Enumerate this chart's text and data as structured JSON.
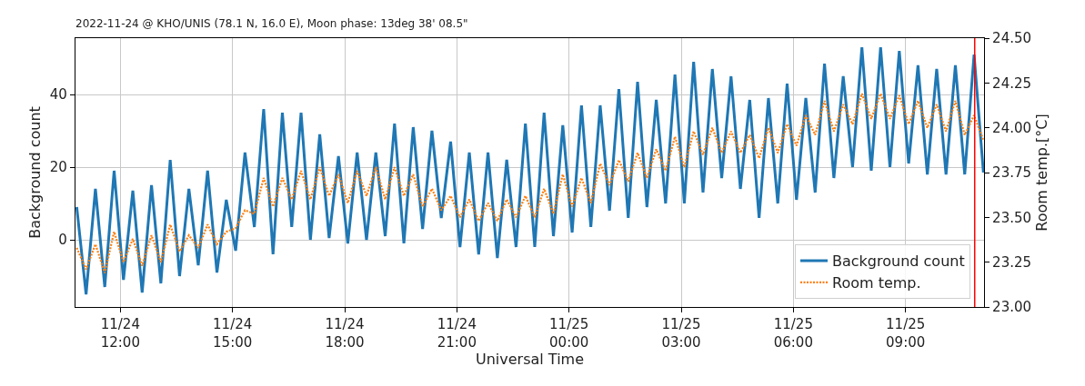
{
  "chart_data": {
    "type": "line",
    "title": "2022-11-24 @ KHO/UNIS (78.1 N, 16.0 E), Moon phase: 13deg 38' 08.5\"",
    "xlabel": "Universal Time",
    "ylabel": "Background count",
    "y2label": "Room temp.[°C]",
    "x": [
      "2022-11-24T10:50",
      "2022-11-24T11:05",
      "2022-11-24T11:20",
      "2022-11-24T11:35",
      "2022-11-24T11:50",
      "2022-11-24T12:05",
      "2022-11-24T12:20",
      "2022-11-24T12:35",
      "2022-11-24T12:50",
      "2022-11-24T13:05",
      "2022-11-24T13:20",
      "2022-11-24T13:35",
      "2022-11-24T13:50",
      "2022-11-24T14:05",
      "2022-11-24T14:20",
      "2022-11-24T14:35",
      "2022-11-24T14:50",
      "2022-11-24T15:05",
      "2022-11-24T15:20",
      "2022-11-24T15:35",
      "2022-11-24T15:50",
      "2022-11-24T16:05",
      "2022-11-24T16:20",
      "2022-11-24T16:35",
      "2022-11-24T16:50",
      "2022-11-24T17:05",
      "2022-11-24T17:20",
      "2022-11-24T17:35",
      "2022-11-24T17:50",
      "2022-11-24T18:05",
      "2022-11-24T18:20",
      "2022-11-24T18:35",
      "2022-11-24T18:50",
      "2022-11-24T19:05",
      "2022-11-24T19:20",
      "2022-11-24T19:35",
      "2022-11-24T19:50",
      "2022-11-24T20:05",
      "2022-11-24T20:20",
      "2022-11-24T20:35",
      "2022-11-24T20:50",
      "2022-11-24T21:05",
      "2022-11-24T21:20",
      "2022-11-24T21:35",
      "2022-11-24T21:50",
      "2022-11-24T22:05",
      "2022-11-24T22:20",
      "2022-11-24T22:35",
      "2022-11-24T22:50",
      "2022-11-24T23:05",
      "2022-11-24T23:20",
      "2022-11-24T23:35",
      "2022-11-24T23:50",
      "2022-11-25T00:05",
      "2022-11-25T00:20",
      "2022-11-25T00:35",
      "2022-11-25T00:50",
      "2022-11-25T01:05",
      "2022-11-25T01:20",
      "2022-11-25T01:35",
      "2022-11-25T01:50",
      "2022-11-25T02:05",
      "2022-11-25T02:20",
      "2022-11-25T02:35",
      "2022-11-25T02:50",
      "2022-11-25T03:05",
      "2022-11-25T03:20",
      "2022-11-25T03:35",
      "2022-11-25T03:50",
      "2022-11-25T04:05",
      "2022-11-25T04:20",
      "2022-11-25T04:35",
      "2022-11-25T04:50",
      "2022-11-25T05:05",
      "2022-11-25T05:20",
      "2022-11-25T05:35",
      "2022-11-25T05:50",
      "2022-11-25T06:05",
      "2022-11-25T06:20",
      "2022-11-25T06:35",
      "2022-11-25T06:50",
      "2022-11-25T07:05",
      "2022-11-25T07:20",
      "2022-11-25T07:35",
      "2022-11-25T07:50",
      "2022-11-25T08:05",
      "2022-11-25T08:20",
      "2022-11-25T08:35",
      "2022-11-25T08:50",
      "2022-11-25T09:05",
      "2022-11-25T09:20",
      "2022-11-25T09:35",
      "2022-11-25T09:50",
      "2022-11-25T10:05",
      "2022-11-25T10:20",
      "2022-11-25T10:35",
      "2022-11-25T10:50",
      "2022-11-25T11:05"
    ],
    "series": [
      {
        "name": "Background count",
        "color": "#1f77b4",
        "line_style": "solid",
        "values": [
          9,
          -15,
          14,
          -13,
          19,
          -11,
          13.5,
          -14.5,
          15,
          -12,
          22,
          -10,
          14,
          -7,
          19,
          -9,
          11,
          -3,
          24,
          3.5,
          36,
          -4,
          35,
          3.5,
          35,
          0,
          29,
          0.5,
          23,
          -1,
          24,
          0,
          24,
          1,
          32,
          -1,
          31,
          3,
          30,
          6,
          27,
          -2,
          24,
          -4,
          24,
          -5,
          22,
          -2,
          32,
          -2,
          35,
          1,
          31.5,
          2,
          37,
          3.5,
          37,
          8,
          41.5,
          6,
          43.5,
          9,
          38.5,
          10,
          45.5,
          10,
          49,
          13,
          47,
          17,
          45,
          14,
          38.5,
          6,
          39,
          10,
          43,
          11,
          39,
          13,
          48.5,
          17,
          45,
          20,
          53,
          19,
          53,
          20,
          52,
          21,
          48,
          18,
          47,
          18,
          48,
          18,
          51,
          18.5
        ]
      },
      {
        "name": "Room temp.",
        "color": "#ff7f0e",
        "line_style": "dotted",
        "axis": "y2",
        "values": [
          23.33,
          23.21,
          23.35,
          23.19,
          23.42,
          23.25,
          23.38,
          23.23,
          23.4,
          23.25,
          23.46,
          23.31,
          23.4,
          23.33,
          23.46,
          23.35,
          23.42,
          23.44,
          23.54,
          23.52,
          23.72,
          23.56,
          23.72,
          23.6,
          23.76,
          23.6,
          23.78,
          23.62,
          23.74,
          23.58,
          23.76,
          23.62,
          23.78,
          23.6,
          23.78,
          23.62,
          23.74,
          23.56,
          23.66,
          23.54,
          23.62,
          23.5,
          23.6,
          23.48,
          23.58,
          23.48,
          23.6,
          23.5,
          23.62,
          23.5,
          23.66,
          23.52,
          23.74,
          23.56,
          23.72,
          23.58,
          23.8,
          23.68,
          23.82,
          23.7,
          23.86,
          23.72,
          23.88,
          23.76,
          23.95,
          23.78,
          23.98,
          23.85,
          24.0,
          23.86,
          23.98,
          23.86,
          23.96,
          23.83,
          24.0,
          23.86,
          24.02,
          23.9,
          24.07,
          23.96,
          24.15,
          23.98,
          24.13,
          24.02,
          24.19,
          24.05,
          24.19,
          24.05,
          24.18,
          24.02,
          24.15,
          24.0,
          24.13,
          23.98,
          24.15,
          23.96,
          24.07,
          23.93
        ]
      }
    ],
    "xlim": [
      "2022-11-24T10:48",
      "2022-11-25T11:06"
    ],
    "xticks": [
      {
        "value": "2022-11-24T12:00",
        "label": "11/24\n12:00"
      },
      {
        "value": "2022-11-24T15:00",
        "label": "11/24\n15:00"
      },
      {
        "value": "2022-11-24T18:00",
        "label": "11/24\n18:00"
      },
      {
        "value": "2022-11-24T21:00",
        "label": "11/24\n21:00"
      },
      {
        "value": "2022-11-25T00:00",
        "label": "11/25\n00:00"
      },
      {
        "value": "2022-11-25T03:00",
        "label": "11/25\n03:00"
      },
      {
        "value": "2022-11-25T06:00",
        "label": "11/25\n06:00"
      },
      {
        "value": "2022-11-25T09:00",
        "label": "11/25\n09:00"
      }
    ],
    "ylim": [
      -18.5,
      55.5
    ],
    "yticks": [
      0,
      20,
      40
    ],
    "y2lim": [
      23,
      24.5
    ],
    "y2ticks": [
      {
        "value": 23,
        "label": "23.00"
      },
      {
        "value": 23.25,
        "label": "23.25"
      },
      {
        "value": 23.5,
        "label": "23.50"
      },
      {
        "value": 23.75,
        "label": "23.75"
      },
      {
        "value": 24,
        "label": "24.00"
      },
      {
        "value": 24.25,
        "label": "24.25"
      },
      {
        "value": 24.5,
        "label": "24.50"
      }
    ],
    "ref_lines": [
      {
        "axis": "x",
        "value": "2022-11-25T10:51",
        "color": "#ff0000"
      }
    ],
    "grid": true,
    "legend": "bottom right"
  }
}
